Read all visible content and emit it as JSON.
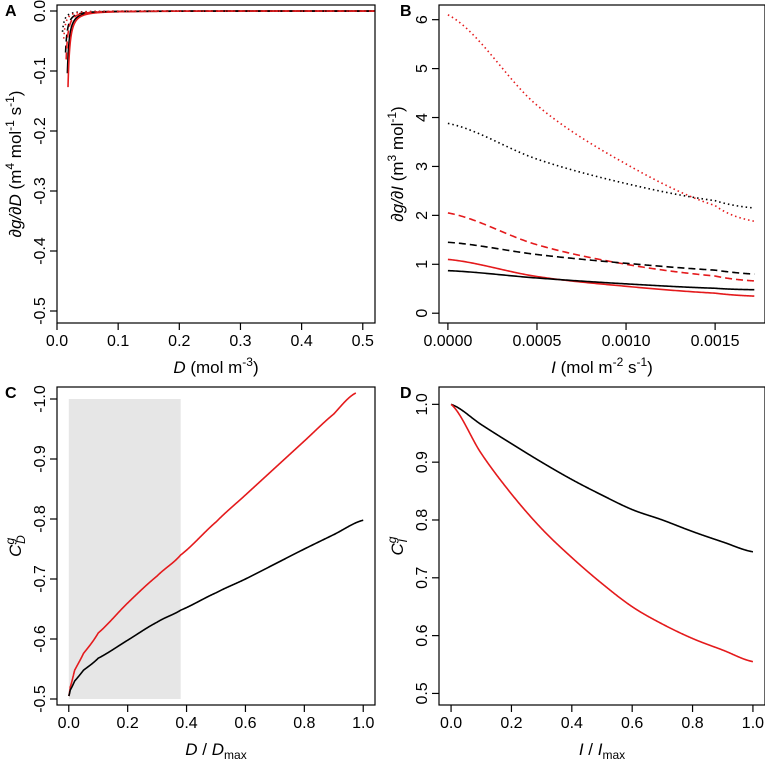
{
  "figure": {
    "panels": [
      "A",
      "B",
      "C",
      "D"
    ]
  },
  "chart_data": [
    {
      "panel": "A",
      "type": "line",
      "xlabel": {
        "main": "D",
        "rest": " (mol m",
        "sup": "-3",
        "end": ")"
      },
      "ylabel": {
        "main": "∂g/∂D",
        "rest": " (m",
        "sup1": "4",
        "mid": " mol",
        "sup2": "-1",
        "mid2": " s",
        "sup3": "-1",
        "end": ")"
      },
      "xlim": [
        0,
        0.52
      ],
      "ylim": [
        -0.52,
        0.01
      ],
      "xticks": [
        0.0,
        0.1,
        0.2,
        0.3,
        0.4,
        0.5
      ],
      "xtick_labels": [
        "0.0",
        "0.1",
        "0.2",
        "0.3",
        "0.4",
        "0.5"
      ],
      "yticks": [
        0.0,
        -0.1,
        -0.2,
        -0.3,
        -0.4,
        -0.5
      ],
      "ytick_labels": [
        "0.0",
        "-0.1",
        "-0.2",
        "-0.3",
        "-0.4",
        "-0.5"
      ],
      "series": [
        {
          "name": "solid-black",
          "color": "#000000",
          "dash": "solid",
          "x0": 0.016,
          "k": 0.0018
        },
        {
          "name": "solid-red",
          "color": "#e41a1c",
          "dash": "solid",
          "x0": 0.017,
          "k": 0.0022
        },
        {
          "name": "dashed-black",
          "color": "#000000",
          "dash": "dashed",
          "x0": 0.013,
          "k": 0.0012
        },
        {
          "name": "dashed-red",
          "color": "#e41a1c",
          "dash": "dashed",
          "x0": 0.014,
          "k": 0.0014
        },
        {
          "name": "dotted-black",
          "color": "#000000",
          "dash": "dotted",
          "x0": 0.008,
          "k": 0.0006
        },
        {
          "name": "dotted-red",
          "color": "#e41a1c",
          "dash": "dotted",
          "x0": 0.01,
          "k": 0.0008
        }
      ]
    },
    {
      "panel": "B",
      "type": "line",
      "xlabel": {
        "main": "I",
        "rest": " (mol m",
        "sup": "-2",
        "mid": " s",
        "sup2": "-1",
        "end": ")"
      },
      "ylabel": {
        "main": "∂g/∂I",
        "rest": " (m",
        "sup": "3",
        "mid": " mol",
        "sup2": "-1",
        "end": ")"
      },
      "xlim": [
        -5e-05,
        0.00178
      ],
      "ylim": [
        -0.2,
        6.3
      ],
      "xticks": [
        0.0,
        0.0005,
        0.001,
        0.0015
      ],
      "xtick_labels": [
        "0.0000",
        "0.0005",
        "0.0010",
        "0.0015"
      ],
      "yticks": [
        0,
        1,
        2,
        3,
        4,
        5,
        6
      ],
      "ytick_labels": [
        "0",
        "1",
        "2",
        "3",
        "4",
        "5",
        "6"
      ],
      "series": [
        {
          "name": "dotted-red",
          "color": "#e41a1c",
          "dash": "dotted",
          "x": [
            0,
            0.0005,
            0.001,
            0.0015,
            0.00172
          ],
          "y": [
            6.1,
            4.25,
            3.05,
            2.2,
            1.88
          ]
        },
        {
          "name": "dotted-black",
          "color": "#000000",
          "dash": "dotted",
          "x": [
            0,
            0.0005,
            0.001,
            0.0015,
            0.00172
          ],
          "y": [
            3.88,
            3.15,
            2.65,
            2.3,
            2.15
          ]
        },
        {
          "name": "dashed-red",
          "color": "#e41a1c",
          "dash": "dashed",
          "x": [
            0,
            0.0005,
            0.001,
            0.0015,
            0.00172
          ],
          "y": [
            2.05,
            1.4,
            1.0,
            0.76,
            0.66
          ]
        },
        {
          "name": "dashed-black",
          "color": "#000000",
          "dash": "dashed",
          "x": [
            0,
            0.0005,
            0.001,
            0.0015,
            0.00172
          ],
          "y": [
            1.45,
            1.2,
            1.02,
            0.88,
            0.8
          ]
        },
        {
          "name": "solid-red",
          "color": "#e41a1c",
          "dash": "solid",
          "x": [
            0,
            0.0005,
            0.001,
            0.0015,
            0.00172
          ],
          "y": [
            1.1,
            0.75,
            0.55,
            0.41,
            0.35
          ]
        },
        {
          "name": "solid-black",
          "color": "#000000",
          "dash": "solid",
          "x": [
            0,
            0.0005,
            0.001,
            0.0015,
            0.00172
          ],
          "y": [
            0.87,
            0.72,
            0.6,
            0.51,
            0.48
          ]
        }
      ]
    },
    {
      "panel": "C",
      "type": "line",
      "xlabel": {
        "main": "D",
        "rest": " / ",
        "main2": "D",
        "sub": "max"
      },
      "ylabel": {
        "main": "C",
        "sup": "g",
        "sub": "D"
      },
      "xlim": [
        -0.04,
        1.04
      ],
      "ylim": [
        -0.49,
        -1.02
      ],
      "xticks": [
        0.0,
        0.2,
        0.4,
        0.6,
        0.8,
        1.0
      ],
      "xtick_labels": [
        "0.0",
        "0.2",
        "0.4",
        "0.6",
        "0.8",
        "1.0"
      ],
      "yticks": [
        -0.5,
        -0.6,
        -0.7,
        -0.8,
        -0.9,
        -1.0
      ],
      "ytick_labels": [
        "-0.5",
        "-0.6",
        "-0.7",
        "-0.8",
        "-0.9",
        "-1.0"
      ],
      "shaded_region": {
        "x": [
          0.0,
          0.38
        ],
        "y": [
          -0.5,
          -1.0
        ],
        "color": "#e6e6e6"
      },
      "series": [
        {
          "name": "red",
          "color": "#e41a1c",
          "dash": "solid",
          "x": [
            0,
            0.005,
            0.02,
            0.05,
            0.1,
            0.2,
            0.3,
            0.38,
            0.5,
            0.6,
            0.7,
            0.8,
            0.9,
            0.975
          ],
          "y": [
            -0.505,
            -0.52,
            -0.548,
            -0.576,
            -0.61,
            -0.66,
            -0.705,
            -0.74,
            -0.795,
            -0.84,
            -0.885,
            -0.93,
            -0.975,
            -1.01
          ]
        },
        {
          "name": "black",
          "color": "#000000",
          "dash": "solid",
          "x": [
            0,
            0.005,
            0.02,
            0.05,
            0.1,
            0.2,
            0.3,
            0.38,
            0.5,
            0.6,
            0.7,
            0.8,
            0.9,
            1.0
          ],
          "y": [
            -0.505,
            -0.515,
            -0.53,
            -0.548,
            -0.568,
            -0.598,
            -0.628,
            -0.648,
            -0.677,
            -0.7,
            -0.725,
            -0.75,
            -0.774,
            -0.798
          ]
        }
      ]
    },
    {
      "panel": "D",
      "type": "line",
      "xlabel": {
        "main": "I",
        "rest": " / ",
        "main2": "I",
        "sub": "max"
      },
      "ylabel": {
        "main": "C",
        "sup": "g",
        "sub": "I"
      },
      "xlim": [
        -0.04,
        1.04
      ],
      "ylim": [
        0.48,
        1.03
      ],
      "xticks": [
        0.0,
        0.2,
        0.4,
        0.6,
        0.8,
        1.0
      ],
      "xtick_labels": [
        "0.0",
        "0.2",
        "0.4",
        "0.6",
        "0.8",
        "1.0"
      ],
      "yticks": [
        0.5,
        0.6,
        0.7,
        0.8,
        0.9,
        1.0
      ],
      "ytick_labels": [
        "0.5",
        "0.6",
        "0.7",
        "0.8",
        "0.9",
        "1.0"
      ],
      "series": [
        {
          "name": "black",
          "color": "#000000",
          "dash": "solid",
          "x": [
            0,
            0.1,
            0.2,
            0.3,
            0.4,
            0.5,
            0.6,
            0.7,
            0.8,
            0.9,
            1.0
          ],
          "y": [
            1.0,
            0.965,
            0.932,
            0.9,
            0.87,
            0.843,
            0.818,
            0.8,
            0.78,
            0.762,
            0.745
          ]
        },
        {
          "name": "red",
          "color": "#e41a1c",
          "dash": "solid",
          "x": [
            0,
            0.1,
            0.2,
            0.3,
            0.4,
            0.5,
            0.6,
            0.7,
            0.8,
            0.9,
            1.0
          ],
          "y": [
            1.0,
            0.915,
            0.845,
            0.785,
            0.735,
            0.69,
            0.65,
            0.62,
            0.595,
            0.575,
            0.555
          ]
        }
      ]
    }
  ]
}
